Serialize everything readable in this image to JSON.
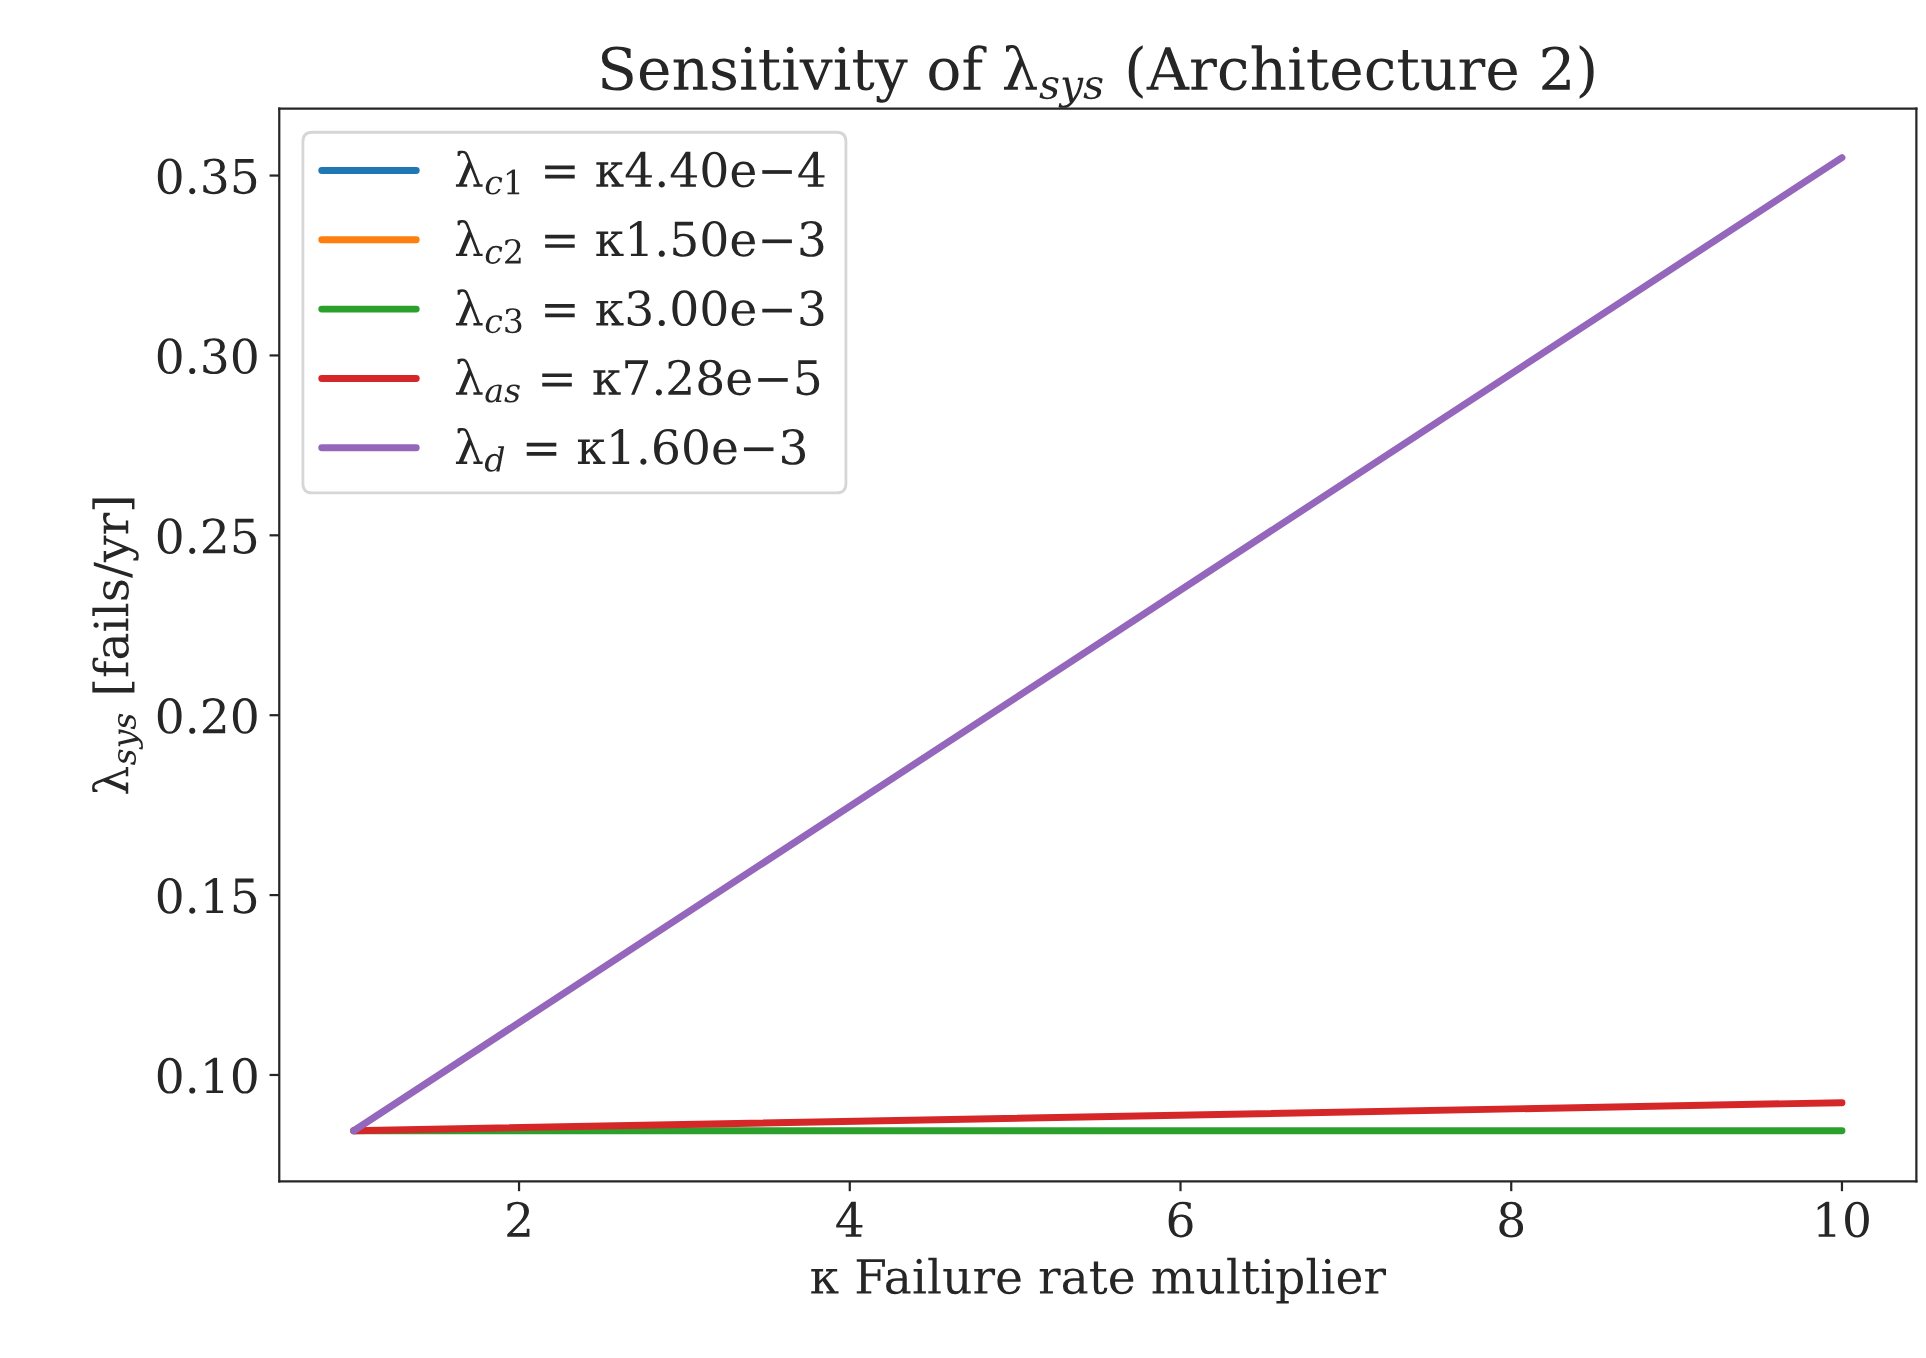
{
  "chart_data": {
    "type": "line",
    "title": "Sensitivity of λ$_{sys}$ (Architecture 2)",
    "xlabel": "κ Failure rate multiplier",
    "ylabel": "λ$_{sys}$ [fails/yr]",
    "x": [
      1,
      10
    ],
    "series": [
      {
        "name": "λ$_{c1}$ = κ4.40e−4",
        "color": "#1f77b4",
        "values": [
          null,
          null
        ]
      },
      {
        "name": "λ$_{c2}$ = κ1.50e−3",
        "color": "#ff7f0e",
        "values": [
          null,
          null
        ]
      },
      {
        "name": "λ$_{c3}$ = κ3.00e−3",
        "color": "#2ca02c",
        "values": [
          0.0845,
          0.0845
        ]
      },
      {
        "name": "λ$_{as}$ = κ7.28e−5",
        "color": "#d62728",
        "values": [
          0.0845,
          0.0923
        ]
      },
      {
        "name": "λ$_{d}$ = κ1.60e−3",
        "color": "#9467bd",
        "values": [
          0.0845,
          0.355
        ]
      }
    ],
    "xlim": [
      0.55,
      10.45
    ],
    "xticks": [
      2,
      4,
      6,
      8,
      10
    ],
    "ylim": [
      0.0704,
      0.3686
    ],
    "yticks": [
      {
        "value": 0.1,
        "label": "0.10"
      },
      0.15,
      {
        "value": 0.2,
        "label": "0.20"
      },
      0.25,
      {
        "value": 0.3,
        "label": "0.30"
      },
      0.35
    ],
    "grid": false,
    "legend": "top left",
    "line_style": "solid",
    "marker": "none"
  }
}
